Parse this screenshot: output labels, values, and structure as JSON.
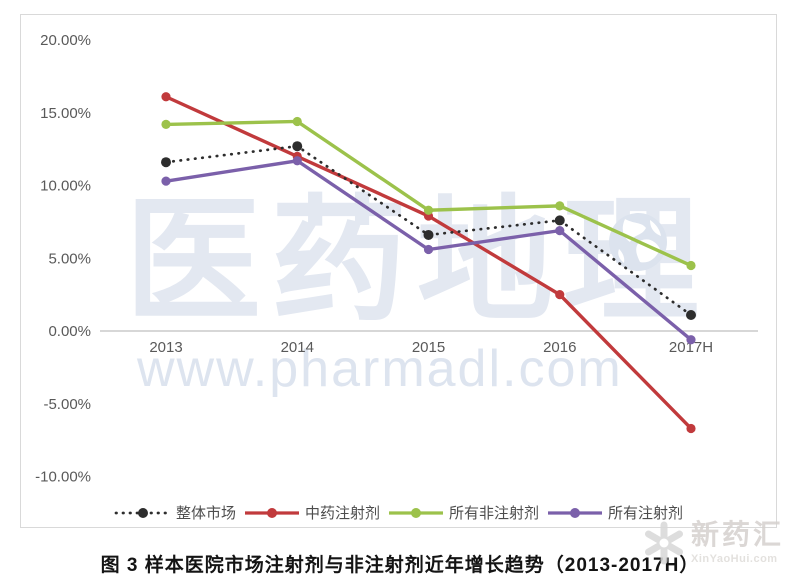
{
  "page": {
    "caption": "图 3  样本医院市场注射剂与非注射剂近年增长趋势（2013-2017H）"
  },
  "watermark": {
    "brand_text": "医药地理",
    "url_text": "www.pharmadl.com",
    "text_color": "#E3E8F1",
    "url_color": "#DDE4EF",
    "globe_color": "#DCE3EE"
  },
  "corner_watermark": {
    "brand_text": "新药汇",
    "url_text": "XinYaoHui.com",
    "brand_color": "#D5D1CE",
    "url_color": "#DFDCD9",
    "logo_color": "#D8D8D8"
  },
  "chart_data": {
    "type": "line",
    "categories": [
      "2013",
      "2014",
      "2015",
      "2016",
      "2017H"
    ],
    "series": [
      {
        "id": "overall-market",
        "name": "整体市场",
        "style": "dotted",
        "color": "#2D2D2D",
        "values": [
          11.6,
          12.7,
          6.6,
          7.6,
          1.1
        ]
      },
      {
        "id": "tcm-injection",
        "name": "中药注射剂",
        "style": "solid",
        "color": "#C13A3C",
        "values": [
          16.1,
          12.0,
          7.9,
          2.5,
          -6.7
        ]
      },
      {
        "id": "all-non-injection",
        "name": "所有非注射剂",
        "style": "solid",
        "color": "#9CC24B",
        "values": [
          14.2,
          14.4,
          8.3,
          8.6,
          4.5
        ]
      },
      {
        "id": "all-injection",
        "name": "所有注射剂",
        "style": "solid",
        "color": "#7B60AA",
        "values": [
          10.3,
          11.7,
          5.6,
          6.9,
          -0.6
        ]
      }
    ],
    "ylim": [
      -10,
      20
    ],
    "ytick_step": 5,
    "ytick_labels": [
      "20.00%",
      "15.00%",
      "10.00%",
      "5.00%",
      "0.00%",
      "-5.00%",
      "-10.00%"
    ],
    "grid": false,
    "legend_position": "bottom",
    "axis_color": "#BFBFBF",
    "label_color": "#595959"
  }
}
